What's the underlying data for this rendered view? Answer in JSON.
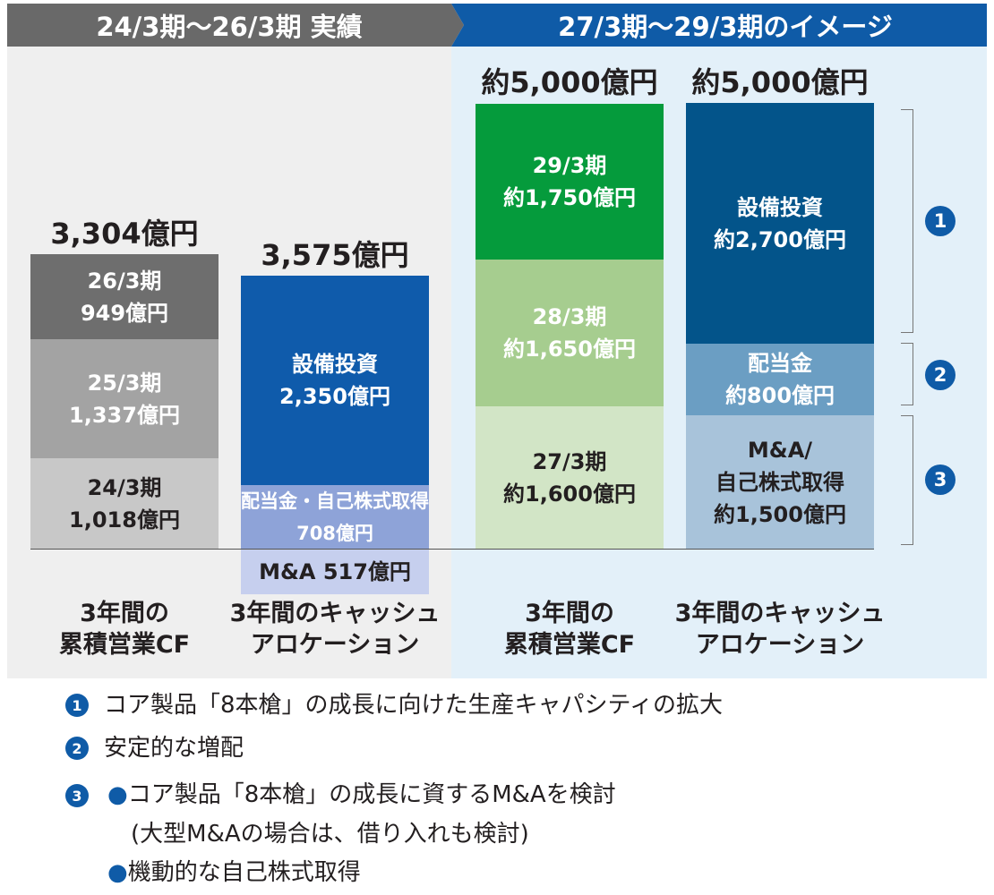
{
  "headers": {
    "left": "24/3期〜26/3期 実績",
    "right": "27/3期〜29/3期のイメージ"
  },
  "chart_data": {
    "type": "bar",
    "stacked": true,
    "unit": "億円",
    "bars": [
      {
        "name": "actual_cf",
        "total_label": "3,304億円",
        "x_label": [
          "3年間の",
          "累積営業CF"
        ],
        "segments": [
          {
            "lines": [
              "24/3期",
              "1,018億円"
            ],
            "value": 1018,
            "color": "#c8c8c8",
            "text_color": "#231f20"
          },
          {
            "lines": [
              "25/3期",
              "1,337億円"
            ],
            "value": 1337,
            "color": "#a3a3a3",
            "text_color": "#ffffff"
          },
          {
            "lines": [
              "26/3期",
              "949億円"
            ],
            "value": 949,
            "color": "#6e6e6e",
            "text_color": "#ffffff"
          }
        ]
      },
      {
        "name": "actual_alloc",
        "total_label": "3,575億円",
        "x_label": [
          "3年間のキャッシュ",
          "アロケーション"
        ],
        "segments": [
          {
            "lines": [
              "M&A 517億円"
            ],
            "value": 517,
            "color": "#c6cfee",
            "text_color": "#231f20"
          },
          {
            "lines": [
              "配当金・自己株式取得",
              "708億円"
            ],
            "value": 708,
            "color": "#8ea3d8",
            "text_color": "#ffffff"
          },
          {
            "lines": [
              "設備投資",
              "2,350億円"
            ],
            "value": 2350,
            "color": "#0f5bab",
            "text_color": "#ffffff"
          }
        ]
      },
      {
        "name": "plan_cf",
        "total_label": "約5,000億円",
        "x_label": [
          "3年間の",
          "累積営業CF"
        ],
        "segments": [
          {
            "lines": [
              "27/3期",
              "約1,600億円"
            ],
            "value": 1600,
            "color": "#d2e5c6",
            "text_color": "#231f20"
          },
          {
            "lines": [
              "28/3期",
              "約1,650億円"
            ],
            "value": 1650,
            "color": "#a6cd8f",
            "text_color": "#ffffff"
          },
          {
            "lines": [
              "29/3期",
              "約1,750億円"
            ],
            "value": 1750,
            "color": "#059b3c",
            "text_color": "#ffffff"
          }
        ]
      },
      {
        "name": "plan_alloc",
        "total_label": "約5,000億円",
        "x_label": [
          "3年間のキャッシュ",
          "アロケーション"
        ],
        "segments": [
          {
            "lines": [
              "M&A/",
              "自己株式取得",
              "約1,500億円"
            ],
            "value": 1500,
            "color": "#a8c3da",
            "text_color": "#231f20"
          },
          {
            "lines": [
              "配当金",
              "約800億円"
            ],
            "value": 800,
            "color": "#6b9ec3",
            "text_color": "#ffffff"
          },
          {
            "lines": [
              "設備投資",
              "約2,700億円"
            ],
            "value": 2700,
            "color": "#03548a",
            "text_color": "#ffffff"
          }
        ]
      }
    ]
  },
  "markers": [
    "1",
    "2",
    "3"
  ],
  "notes": {
    "n1": "コア製品「8本槍」の成長に向けた生産キャパシティの拡大",
    "n2": "安定的な増配",
    "n3a": "コア製品「8本槍」の成長に資するM&Aを検討",
    "n3b": "(大型M&Aの場合は、借り入れも検討)",
    "n3c": "機動的な自己株式取得"
  },
  "colors": {
    "accent": "#0f5ba7",
    "actual_header": "#696969"
  }
}
